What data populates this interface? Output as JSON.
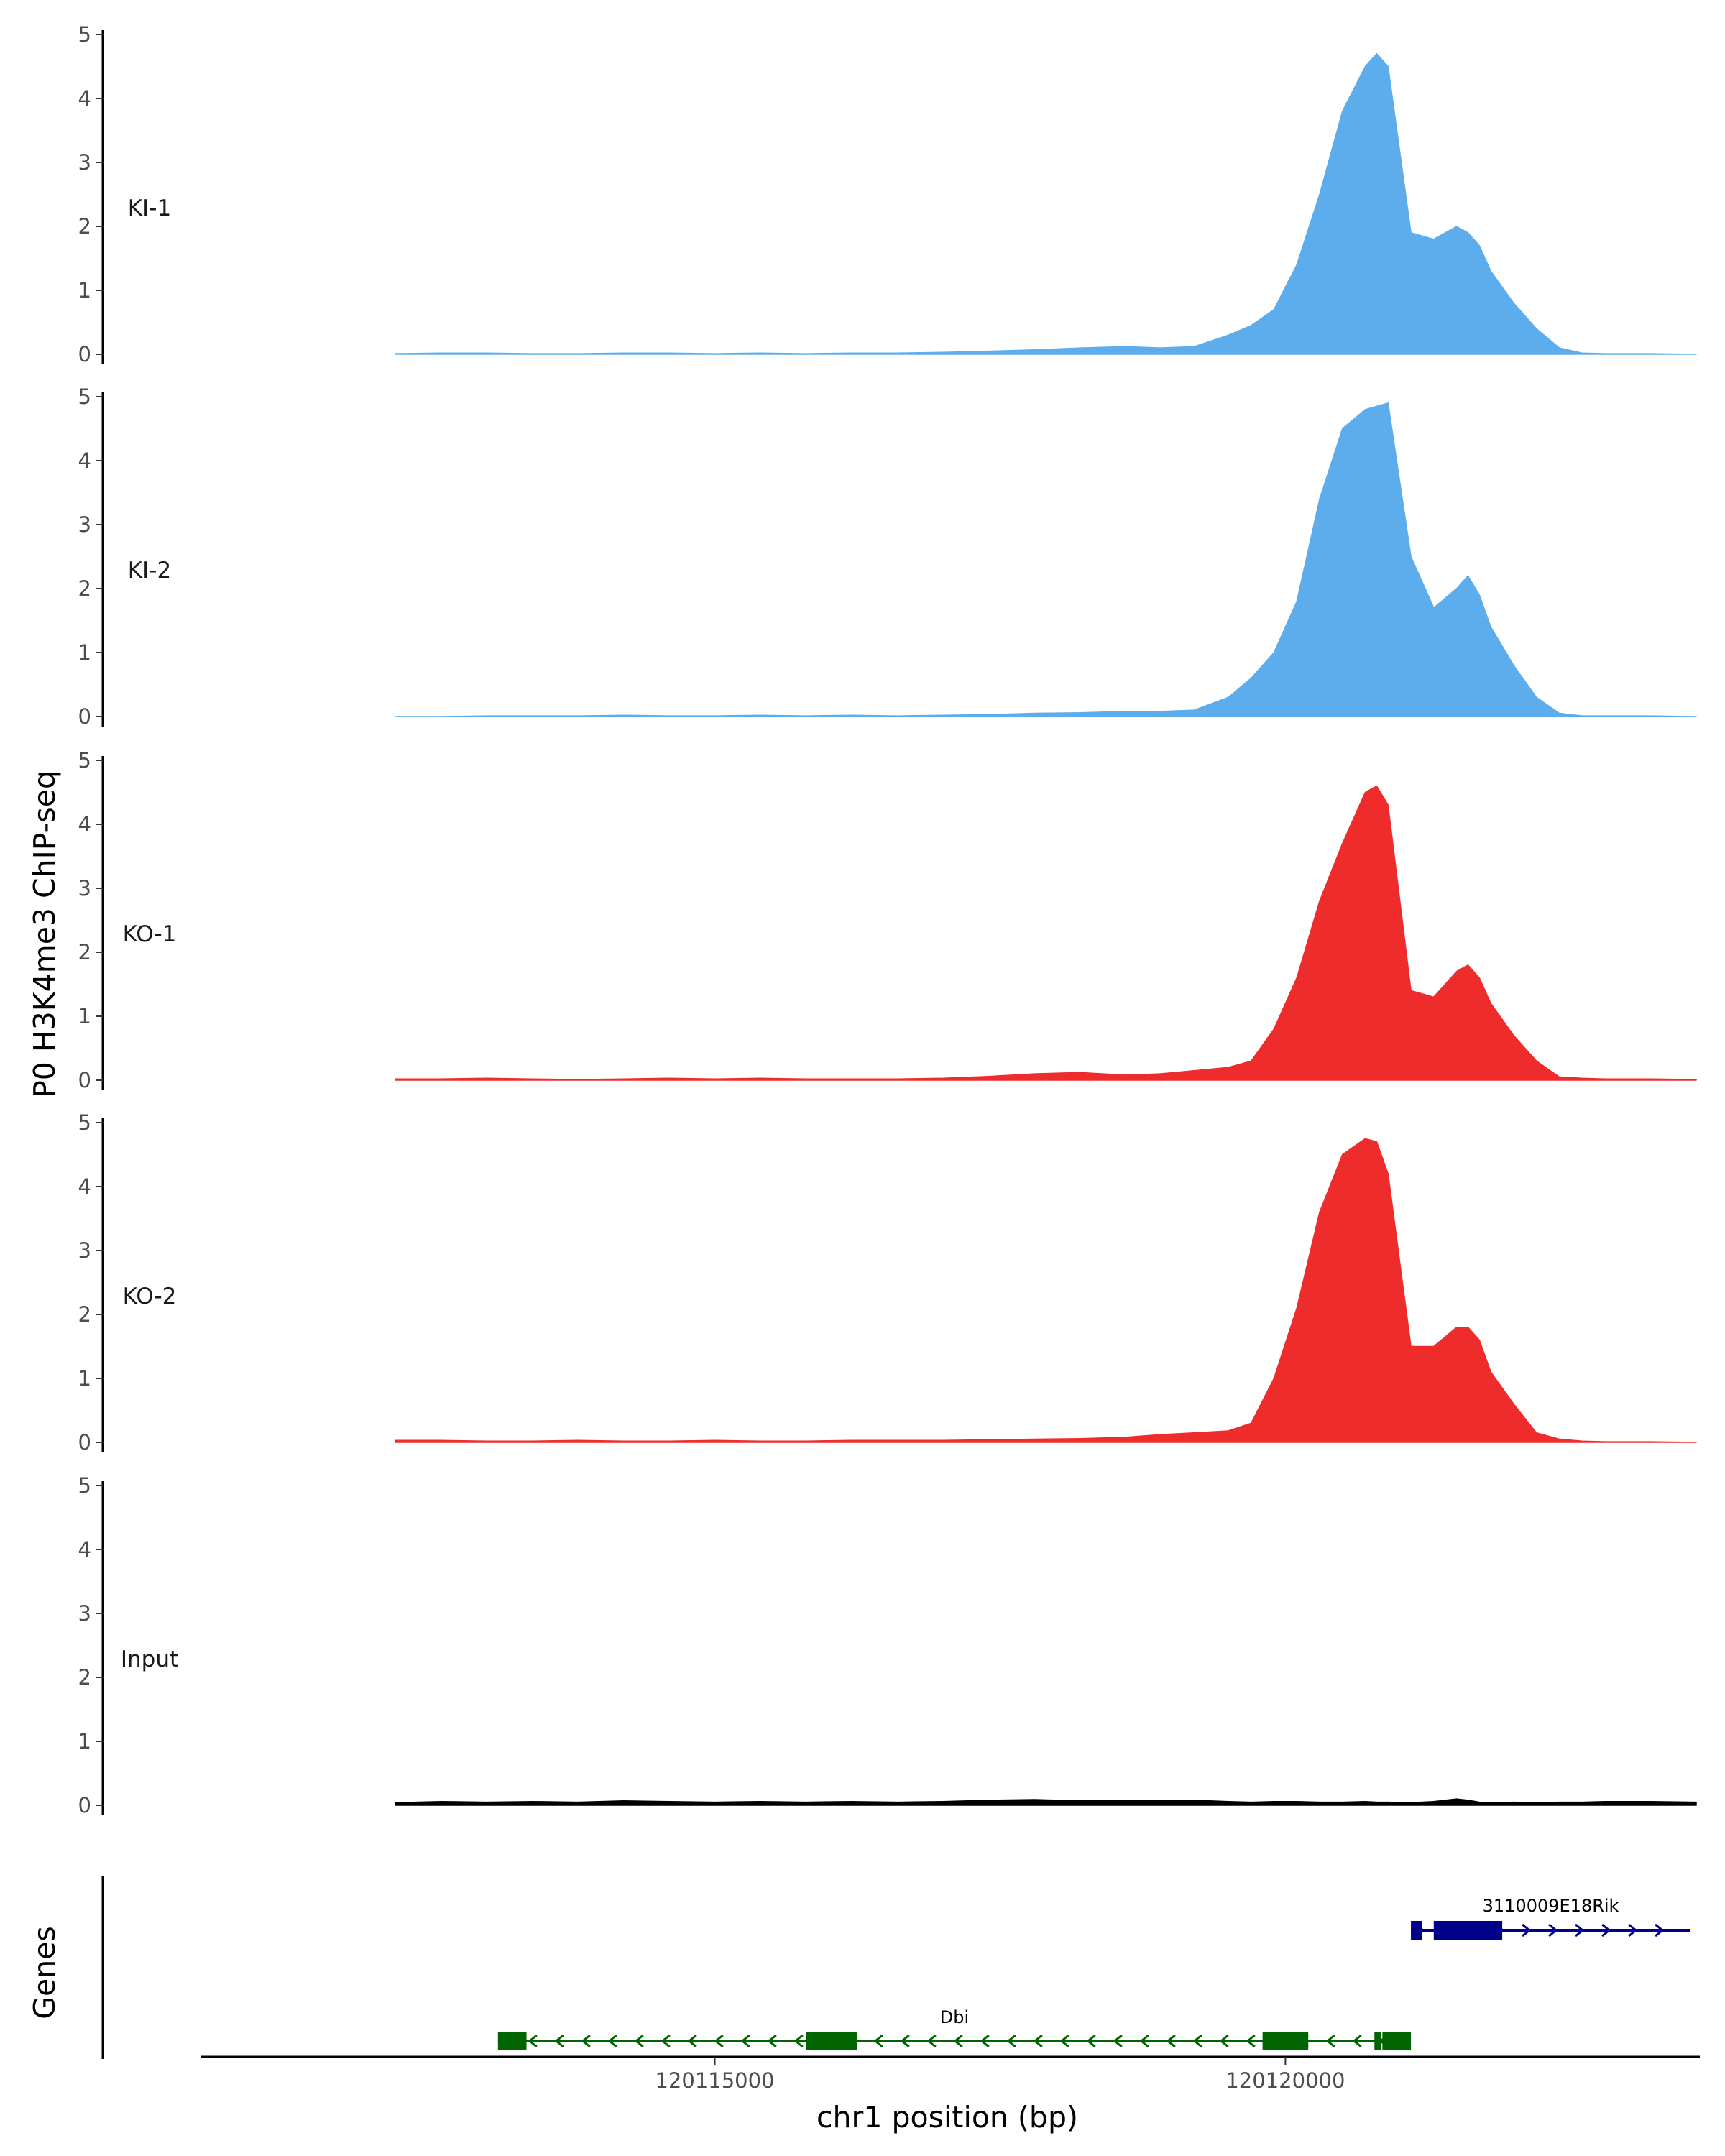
{
  "chart_data": {
    "type": "area",
    "title": "",
    "ylabel": "P0 H3K4me3 ChIP-seq",
    "xlabel": "chr1 position (bp)",
    "genes_label": "Genes",
    "xlim": [
      120110500,
      120123600
    ],
    "ylim": [
      0,
      5
    ],
    "yticks": [
      "0",
      "1",
      "2",
      "3",
      "4",
      "5"
    ],
    "xticks": [
      {
        "value": 120115000,
        "label": "120115000"
      },
      {
        "value": 120120000,
        "label": "120120000"
      }
    ],
    "colors": {
      "KI": "#5DADEC",
      "KO": "#EE2C2C",
      "Input": "#000000",
      "gene_dbi": "#006400",
      "gene_3110009E18Rik": "#00008B"
    },
    "tracks": [
      {
        "name": "KI-1",
        "color": "#5DADEC",
        "x": [
          120112200,
          120112600,
          120113000,
          120113400,
          120113800,
          120114200,
          120114600,
          120115000,
          120115400,
          120115800,
          120116200,
          120116600,
          120117000,
          120117400,
          120117800,
          120118200,
          120118600,
          120118900,
          120119200,
          120119500,
          120119700,
          120119900,
          120120100,
          120120300,
          120120500,
          120120700,
          120120800,
          120120900,
          120121100,
          120121300,
          120121500,
          120121600,
          120121700,
          120121800,
          120122000,
          120122200,
          120122400,
          120122600,
          120122800,
          120123200,
          120123600
        ],
        "values": [
          0.01,
          0.02,
          0.02,
          0.01,
          0.01,
          0.02,
          0.02,
          0.01,
          0.02,
          0.01,
          0.02,
          0.02,
          0.03,
          0.05,
          0.07,
          0.1,
          0.12,
          0.1,
          0.12,
          0.3,
          0.45,
          0.7,
          1.4,
          2.5,
          3.8,
          4.5,
          4.7,
          4.5,
          1.9,
          1.8,
          2.0,
          1.9,
          1.7,
          1.3,
          0.8,
          0.4,
          0.1,
          0.02,
          0.01,
          0.01,
          0.0
        ]
      },
      {
        "name": "KI-2",
        "color": "#5DADEC",
        "x": [
          120112200,
          120112600,
          120113000,
          120113400,
          120113800,
          120114200,
          120114600,
          120115000,
          120115400,
          120115800,
          120116200,
          120116600,
          120117000,
          120117400,
          120117800,
          120118200,
          120118600,
          120118900,
          120119200,
          120119500,
          120119700,
          120119900,
          120120100,
          120120300,
          120120500,
          120120700,
          120120800,
          120120900,
          120121100,
          120121300,
          120121500,
          120121600,
          120121700,
          120121800,
          120122000,
          120122200,
          120122400,
          120122600,
          120122800,
          120123200,
          120123600
        ],
        "values": [
          0.0,
          0.0,
          0.01,
          0.01,
          0.01,
          0.02,
          0.01,
          0.01,
          0.02,
          0.01,
          0.02,
          0.01,
          0.02,
          0.03,
          0.05,
          0.06,
          0.08,
          0.08,
          0.1,
          0.3,
          0.6,
          1.0,
          1.8,
          3.4,
          4.5,
          4.8,
          4.85,
          4.9,
          2.5,
          1.7,
          2.0,
          2.2,
          1.9,
          1.4,
          0.8,
          0.3,
          0.05,
          0.01,
          0.01,
          0.01,
          0.0
        ]
      },
      {
        "name": "KO-1",
        "color": "#EE2C2C",
        "x": [
          120112200,
          120112600,
          120113000,
          120113400,
          120113800,
          120114200,
          120114600,
          120115000,
          120115400,
          120115800,
          120116200,
          120116600,
          120117000,
          120117400,
          120117800,
          120118200,
          120118600,
          120118900,
          120119200,
          120119500,
          120119700,
          120119900,
          120120100,
          120120300,
          120120500,
          120120700,
          120120800,
          120120900,
          120121100,
          120121300,
          120121500,
          120121600,
          120121700,
          120121800,
          120122000,
          120122200,
          120122400,
          120122600,
          120122800,
          120123200,
          120123600
        ],
        "values": [
          0.02,
          0.02,
          0.03,
          0.02,
          0.01,
          0.02,
          0.03,
          0.02,
          0.03,
          0.02,
          0.02,
          0.02,
          0.03,
          0.06,
          0.1,
          0.12,
          0.08,
          0.1,
          0.15,
          0.2,
          0.3,
          0.8,
          1.6,
          2.8,
          3.7,
          4.5,
          4.6,
          4.3,
          1.4,
          1.3,
          1.7,
          1.8,
          1.6,
          1.2,
          0.7,
          0.3,
          0.05,
          0.03,
          0.02,
          0.02,
          0.01
        ]
      },
      {
        "name": "KO-2",
        "color": "#EE2C2C",
        "x": [
          120112200,
          120112600,
          120113000,
          120113400,
          120113800,
          120114200,
          120114600,
          120115000,
          120115400,
          120115800,
          120116200,
          120116600,
          120117000,
          120117400,
          120117800,
          120118200,
          120118600,
          120118900,
          120119200,
          120119500,
          120119700,
          120119900,
          120120100,
          120120300,
          120120500,
          120120700,
          120120800,
          120120900,
          120121100,
          120121300,
          120121500,
          120121600,
          120121700,
          120121800,
          120122000,
          120122200,
          120122400,
          120122600,
          120122800,
          120123200,
          120123600
        ],
        "values": [
          0.03,
          0.03,
          0.02,
          0.02,
          0.03,
          0.02,
          0.02,
          0.03,
          0.02,
          0.02,
          0.03,
          0.03,
          0.03,
          0.04,
          0.05,
          0.06,
          0.08,
          0.12,
          0.15,
          0.18,
          0.3,
          1.0,
          2.1,
          3.6,
          4.5,
          4.75,
          4.7,
          4.2,
          1.5,
          1.5,
          1.8,
          1.8,
          1.6,
          1.1,
          0.6,
          0.15,
          0.05,
          0.02,
          0.01,
          0.01,
          0.0
        ]
      },
      {
        "name": "Input",
        "color": "#000000",
        "x": [
          120112200,
          120112600,
          120113000,
          120113400,
          120113800,
          120114200,
          120114600,
          120115000,
          120115400,
          120115800,
          120116200,
          120116600,
          120117000,
          120117400,
          120117800,
          120118200,
          120118600,
          120118900,
          120119200,
          120119500,
          120119700,
          120119900,
          120120100,
          120120300,
          120120500,
          120120700,
          120120800,
          120120900,
          120121100,
          120121300,
          120121500,
          120121600,
          120121700,
          120121800,
          120122000,
          120122200,
          120122400,
          120122600,
          120122800,
          120123200,
          120123600
        ],
        "values": [
          0.04,
          0.06,
          0.05,
          0.06,
          0.05,
          0.07,
          0.06,
          0.05,
          0.06,
          0.05,
          0.06,
          0.05,
          0.06,
          0.08,
          0.09,
          0.07,
          0.08,
          0.07,
          0.08,
          0.06,
          0.05,
          0.06,
          0.06,
          0.05,
          0.05,
          0.06,
          0.05,
          0.05,
          0.04,
          0.06,
          0.1,
          0.08,
          0.05,
          0.04,
          0.05,
          0.04,
          0.05,
          0.05,
          0.06,
          0.06,
          0.05
        ]
      }
    ],
    "genes": [
      {
        "name": "3110009E18Rik",
        "start": 120121100,
        "end": 120123550,
        "strand": "+",
        "exons": [
          [
            120121100,
            120121200
          ],
          [
            120121300,
            120121900
          ]
        ],
        "row": 1
      },
      {
        "name": "Dbi",
        "start": 120113100,
        "end": 120121100,
        "strand": "-",
        "exons": [
          [
            120113100,
            120113350
          ],
          [
            120115800,
            120116250
          ],
          [
            120119800,
            120120200
          ],
          [
            120120780,
            120120840
          ],
          [
            120120850,
            120121100
          ]
        ],
        "row": 2
      }
    ]
  }
}
